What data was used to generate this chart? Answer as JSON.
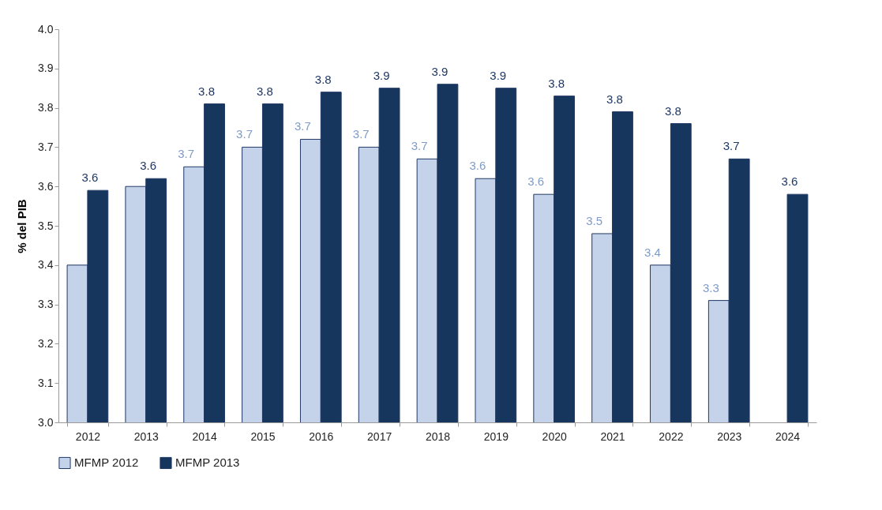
{
  "chart_data": {
    "type": "bar",
    "ylabel": "% del PIB",
    "categories": [
      "2012",
      "2013",
      "2014",
      "2015",
      "2016",
      "2017",
      "2018",
      "2019",
      "2020",
      "2021",
      "2022",
      "2023",
      "2024"
    ],
    "series": [
      {
        "name": "MFMP 2012",
        "color": "#c5d3ea",
        "values": [
          3.4,
          3.6,
          3.65,
          3.7,
          3.72,
          3.7,
          3.67,
          3.62,
          3.58,
          3.48,
          3.4,
          3.31,
          null
        ],
        "value_labels": [
          null,
          null,
          "3.7",
          "3.7",
          "3.7",
          "3.7",
          "3.7",
          "3.6",
          "3.6",
          "3.5",
          "3.4",
          "3.3",
          null
        ]
      },
      {
        "name": "MFMP 2013",
        "color": "#17365d",
        "values": [
          3.59,
          3.62,
          3.81,
          3.81,
          3.84,
          3.85,
          3.86,
          3.85,
          3.83,
          3.79,
          3.76,
          3.67,
          3.58
        ],
        "value_labels": [
          "3.6",
          "3.6",
          "3.8",
          "3.8",
          "3.8",
          "3.9",
          "3.9",
          "3.9",
          "3.8",
          "3.8",
          "3.8",
          "3.7",
          "3.6"
        ]
      }
    ],
    "ylim": [
      3.0,
      4.0
    ],
    "yticks": [
      {
        "value": 3,
        "label": "3.0"
      },
      3.1,
      3.2,
      3.3,
      3.4,
      3.5,
      3.6,
      3.7,
      3.8,
      3.9,
      {
        "value": 4,
        "label": "4.0"
      }
    ],
    "grid": false,
    "legend": "bottom"
  }
}
